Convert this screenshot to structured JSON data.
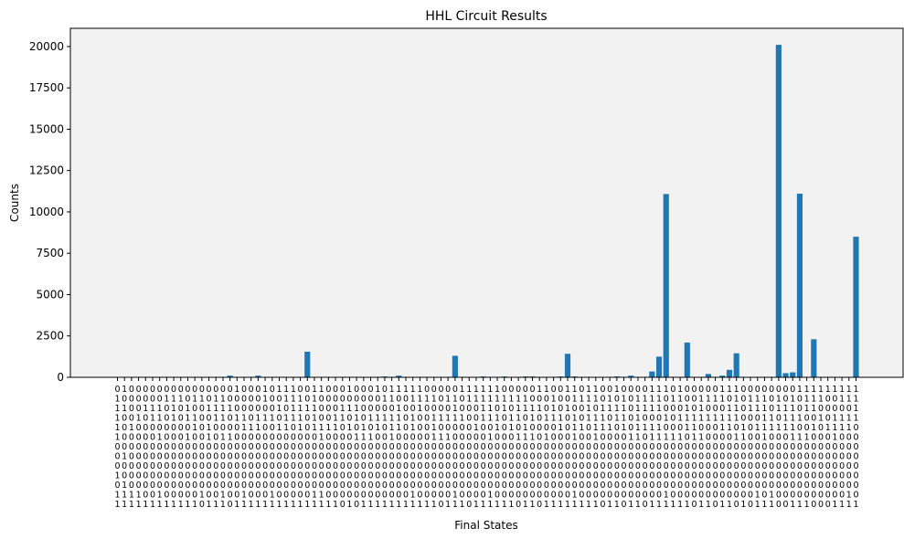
{
  "chart_data": {
    "type": "bar",
    "title": "HHL Circuit Results",
    "xlabel": "Final States",
    "ylabel": "Counts",
    "ylim": [
      0,
      21100
    ],
    "yticks": [
      0,
      2500,
      5000,
      7500,
      10000,
      12500,
      15000,
      17500,
      20000
    ],
    "grid": false,
    "legend": "none",
    "colors": {
      "bar": "#1f77b4",
      "plot_background": "#f2f2f2"
    },
    "categories": [
      "0111110001011",
      "1010000100111",
      "0000100000011",
      "0001000000011",
      "0010000000001",
      "0011000000001",
      "0011010000011",
      "0100000000001",
      "0111000000001",
      "0100000000001",
      "0011010000001",
      "0101100000001",
      "0100000000010",
      "0010110000001",
      "0111000000001",
      "0111010000011",
      "0010010000000",
      "1001000000001",
      "0001100000011",
      "0000100000001",
      "0001100000001",
      "1101000000001",
      "0001000000011",
      "1010100000001",
      "1101100000001",
      "1111000000001",
      "0111100000001",
      "0010000000001",
      "1111100000011",
      "1000110000011",
      "0000100000001",
      "0001100000001",
      "0011000000000",
      "1010100000001",
      "0011010000000",
      "0000110000001",
      "0001010000001",
      "1001100000001",
      "0101000000001",
      "1101110000001",
      "1011100000001",
      "1000000000001",
      "1101100000011",
      "1110000000001",
      "0100000000001",
      "0101110000001",
      "0001010000000",
      "0101010000001",
      "0111000000011",
      "1001000000001",
      "1100000000000",
      "1100100000001",
      "1111000000001",
      "1111010000011",
      "1101100000001",
      "0110000000001",
      "0101100000001",
      "0111010000000",
      "0110110000001",
      "0011010000001",
      "1010000000000",
      "1001010000001",
      "0111000000001",
      "0001100000001",
      "1010000000001",
      "1101110000011",
      "0100100000001",
      "1111000000001",
      "1101110000001",
      "0011100000000",
      "0110100000001",
      "1011000000001",
      "0111100000000",
      "0000010000001",
      "0111110000001",
      "0110100000000",
      "1110110000001",
      "1110110000001",
      "1001010000011",
      "0100010000001",
      "1101010000001",
      "0011100000001",
      "0001110000000",
      "0111010000001",
      "0101000000001",
      "0101000000000",
      "1101100000001",
      "1011100000001",
      "1111010000000",
      "0000110000001",
      "0110000000000",
      "0110100000011",
      "0111110000001",
      "0001100000011",
      "0110100000000",
      "0011100000000",
      "0111110000001",
      "1001010000001",
      "1110010000001",
      "1110100000000",
      "1101000000000",
      "1000100000000",
      "1001110000001",
      "1101100000001",
      "1101100000011",
      "1111000000001"
    ],
    "values": [
      0,
      0,
      0,
      0,
      0,
      0,
      0,
      0,
      0,
      0,
      0,
      0,
      0,
      0,
      0,
      0,
      100,
      0,
      0,
      0,
      100,
      0,
      0,
      0,
      0,
      0,
      0,
      1550,
      0,
      0,
      0,
      0,
      0,
      0,
      0,
      0,
      0,
      0,
      50,
      0,
      100,
      0,
      0,
      0,
      0,
      0,
      0,
      0,
      1300,
      0,
      0,
      0,
      50,
      0,
      0,
      50,
      0,
      0,
      50,
      50,
      0,
      0,
      0,
      50,
      1420,
      50,
      0,
      0,
      0,
      0,
      0,
      50,
      0,
      100,
      0,
      0,
      350,
      1250,
      11080,
      0,
      0,
      2100,
      0,
      0,
      200,
      0,
      100,
      450,
      1450,
      0,
      0,
      0,
      0,
      0,
      20100,
      250,
      300,
      11100,
      0,
      2300,
      0,
      0,
      0,
      0,
      0,
      8500
    ]
  }
}
